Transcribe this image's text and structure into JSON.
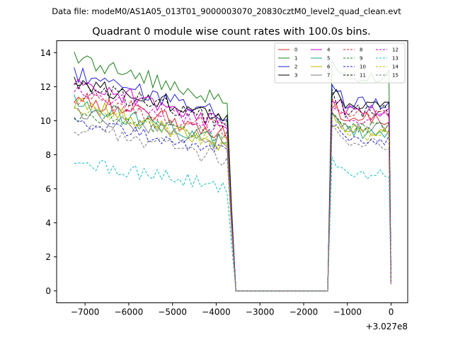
{
  "header": {
    "suptitle": "Data file: modeM0/AS1A05_013T01_9000003070_20830cztM0_level2_quad_clean.evt"
  },
  "chart_data": {
    "type": "line",
    "title": "Quadrant 0 module wise count rates with 100.0s bins.",
    "xlabel": "",
    "ylabel": "",
    "x_offset_label": "+3.027e8",
    "xlim": [
      -7650,
      380
    ],
    "ylim": [
      -0.7,
      14.7
    ],
    "xticks": [
      -7000,
      -6000,
      -5000,
      -4000,
      -3000,
      -2000,
      -1000,
      0
    ],
    "xtick_labels": [
      "−7000",
      "−6000",
      "−5000",
      "−4000",
      "−3000",
      "−2000",
      "−1000",
      "0"
    ],
    "yticks": [
      0,
      2,
      4,
      6,
      8,
      10,
      12,
      14
    ],
    "ytick_labels": [
      "0",
      "2",
      "4",
      "6",
      "8",
      "10",
      "12",
      "14"
    ],
    "grid": false,
    "legend_position": "top-right",
    "legend_columns": 4,
    "x": {
      "seg1_start": -7250,
      "seg1_end": -3750,
      "seg1_step": 100,
      "gap_x": [
        -3550,
        -1450
      ],
      "seg2": [
        -1350,
        -1250,
        -1150,
        -1050,
        -950,
        -850,
        -750,
        -650,
        -550,
        -450,
        -350,
        -250,
        -150,
        -50,
        0
      ]
    },
    "series": [
      {
        "name": "0",
        "color": "#d62728",
        "dash": "solid",
        "level_start": 11.4,
        "level_end": 9.2,
        "level_after": 10.1,
        "noise": 0.5
      },
      {
        "name": "1",
        "color": "#1a7f1a",
        "dash": "solid",
        "level_start": 13.7,
        "level_end": 11.2,
        "level_after": 12.6,
        "noise": 0.5
      },
      {
        "name": "2",
        "color": "#1f1fdd",
        "dash": "solid",
        "level_start": 12.8,
        "level_end": 10.4,
        "level_after": 11.1,
        "noise": 0.5
      },
      {
        "name": "3",
        "color": "#000000",
        "dash": "solid",
        "level_start": 12.2,
        "level_end": 10.3,
        "level_after": 10.9,
        "noise": 0.5
      },
      {
        "name": "4",
        "color": "#cc00cc",
        "dash": "solid",
        "level_start": 12.3,
        "level_end": 9.9,
        "level_after": 10.6,
        "noise": 0.5
      },
      {
        "name": "5",
        "color": "#17a589",
        "dash": "solid",
        "level_start": 11.1,
        "level_end": 8.6,
        "level_after": 9.3,
        "noise": 0.5
      },
      {
        "name": "6",
        "color": "#b8b800",
        "dash": "solid",
        "level_start": 11.2,
        "level_end": 8.5,
        "level_after": 9.4,
        "noise": 0.5
      },
      {
        "name": "7",
        "color": "#7f7f7f",
        "dash": "solid",
        "level_start": 10.6,
        "level_end": 8.6,
        "level_after": 9.5,
        "noise": 0.5
      },
      {
        "name": "8",
        "color": "#d62728",
        "dash": "dashed",
        "level_start": 11.5,
        "level_end": 9.4,
        "level_after": 10.3,
        "noise": 0.5
      },
      {
        "name": "9",
        "color": "#1a7f1a",
        "dash": "dashed",
        "level_start": 10.5,
        "level_end": 8.9,
        "level_after": 9.7,
        "noise": 0.5
      },
      {
        "name": "10",
        "color": "#1f1fdd",
        "dash": "dashed",
        "level_start": 9.9,
        "level_end": 8.2,
        "level_after": 8.9,
        "noise": 0.4
      },
      {
        "name": "11",
        "color": "#000000",
        "dash": "dashed",
        "level_start": 12.1,
        "level_end": 10.0,
        "level_after": 10.6,
        "noise": 0.5
      },
      {
        "name": "12",
        "color": "#cc00cc",
        "dash": "dashed",
        "level_start": 11.8,
        "level_end": 9.5,
        "level_after": 10.1,
        "noise": 0.5
      },
      {
        "name": "13",
        "color": "#17bebe",
        "dash": "dashed",
        "level_start": 7.6,
        "level_end": 6.1,
        "level_after": 6.8,
        "noise": 0.4
      },
      {
        "name": "14",
        "color": "#b8b800",
        "dash": "dashed",
        "level_start": 10.8,
        "level_end": 8.6,
        "level_after": 9.2,
        "noise": 0.5
      },
      {
        "name": "15",
        "color": "#7f7f7f",
        "dash": "dashed",
        "level_start": 9.5,
        "level_end": 7.8,
        "level_after": 8.7,
        "noise": 0.5
      }
    ],
    "last_point_values": [
      0.4,
      0.4,
      0.4,
      0.4,
      0.4,
      0.4,
      0.4,
      0.4,
      0.4,
      0.4,
      0.4,
      0.4,
      0.4,
      0.4,
      0.4,
      0.4
    ]
  }
}
